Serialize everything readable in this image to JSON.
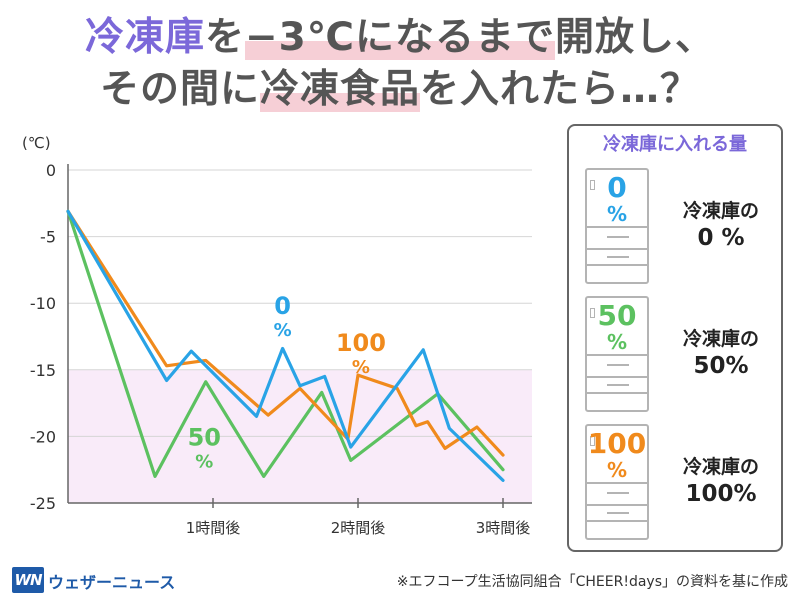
{
  "title": {
    "line1": {
      "highlight": "冷凍庫",
      "part2": "を",
      "mark": "−3℃になるまで",
      "part4": "開放し、"
    },
    "line2": {
      "part1": "その間に",
      "mark": "冷凍食品",
      "part3": "を入れたら…？"
    }
  },
  "chart_data": {
    "type": "line",
    "ylabel": "(℃)",
    "ylim": [
      -25,
      0
    ],
    "yticks": [
      "0",
      "-5",
      "-10",
      "-15",
      "-20",
      "-25"
    ],
    "ytick_values": [
      0,
      -5,
      -10,
      -15,
      -20,
      -25
    ],
    "xlim": [
      0,
      3.2
    ],
    "xticks": [
      "1時間後",
      "2時間後",
      "3時間後"
    ],
    "xtick_values": [
      1,
      2,
      3
    ],
    "shaded_band": {
      "from": -15,
      "to": -25,
      "color": "#f9ebf9"
    },
    "series": [
      {
        "name": "0%",
        "label": "0",
        "label_unit": "%",
        "color": "#29a3e6",
        "x": [
          0,
          0.68,
          0.85,
          1.3,
          1.48,
          1.6,
          1.77,
          1.95,
          2.45,
          2.63,
          3.0
        ],
        "y": [
          -3.1,
          -15.8,
          -13.6,
          -18.5,
          -13.4,
          -16.2,
          -15.5,
          -20.8,
          -13.5,
          -19.4,
          -23.3
        ]
      },
      {
        "name": "50%",
        "label": "50",
        "label_unit": "%",
        "color": "#5cc160",
        "x": [
          0,
          0.6,
          0.95,
          1.35,
          1.75,
          1.95,
          2.55,
          3.0
        ],
        "y": [
          -3.1,
          -23.0,
          -15.9,
          -23.0,
          -16.7,
          -21.8,
          -16.8,
          -22.5
        ]
      },
      {
        "name": "100%",
        "label": "100",
        "label_unit": "%",
        "color": "#f08a1c",
        "x": [
          0,
          0.68,
          0.95,
          1.38,
          1.6,
          1.93,
          2.0,
          2.27,
          2.4,
          2.48,
          2.6,
          2.82,
          3.0
        ],
        "y": [
          -3.1,
          -14.7,
          -14.3,
          -18.4,
          -16.4,
          -20.2,
          -15.4,
          -16.4,
          -19.2,
          -18.9,
          -20.9,
          -19.3,
          -21.4
        ]
      }
    ]
  },
  "legend": {
    "heading": "冷凍庫に入れる量",
    "items": [
      {
        "pct": "0",
        "unit": "%",
        "color": "#29a3e6",
        "label": "冷凍庫の",
        "value": "0 %"
      },
      {
        "pct": "50",
        "unit": "%",
        "color": "#5cc160",
        "label": "冷凍庫の",
        "value": "50%"
      },
      {
        "pct": "100",
        "unit": "%",
        "color": "#f08a1c",
        "label": "冷凍庫の",
        "value": "100%"
      }
    ]
  },
  "brand": {
    "logo_mark": "WN",
    "name": "ウェザーニュース",
    "color": "#1e5aa8"
  },
  "source": "※エフコープ生活協同組合「CHEER!days」の資料を基に作成"
}
